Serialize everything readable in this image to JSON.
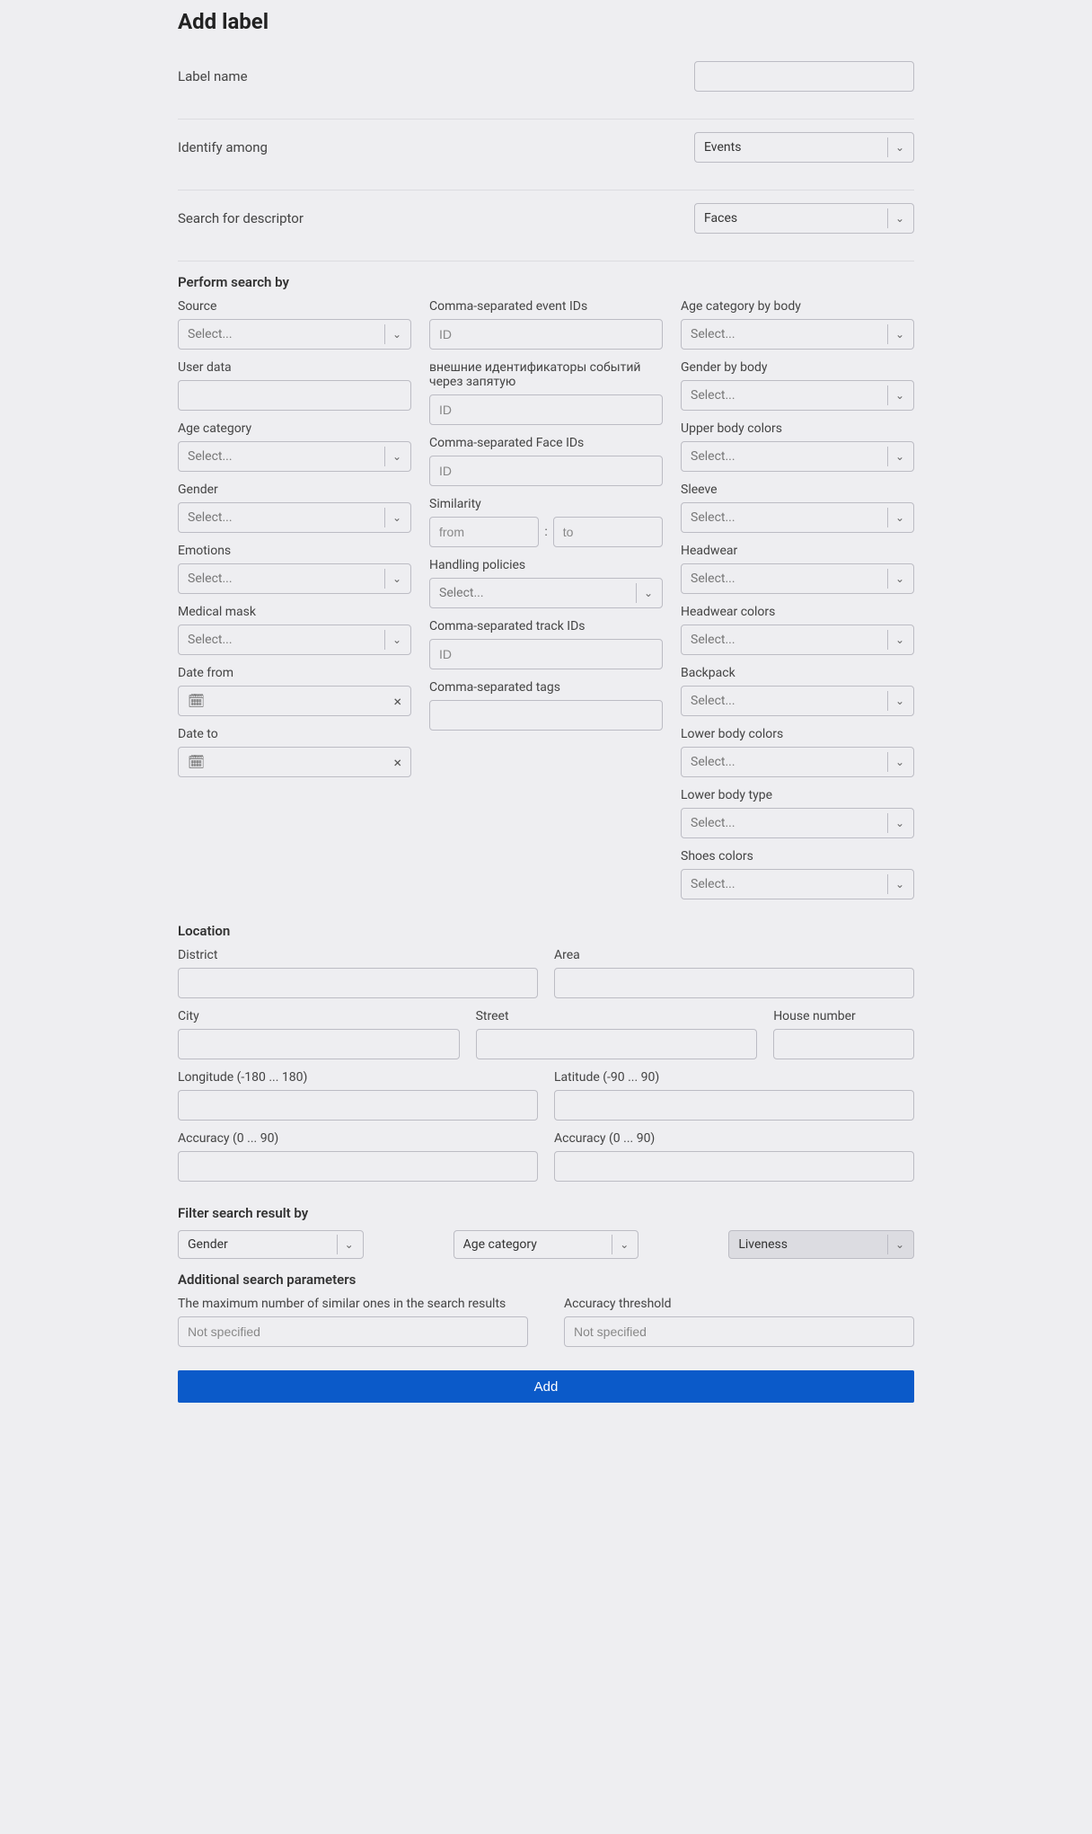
{
  "page_title": "Add label",
  "top": {
    "label_name": {
      "label": "Label name",
      "value": ""
    },
    "identify_among": {
      "label": "Identify among",
      "value": "Events"
    },
    "search_descriptor": {
      "label": "Search for descriptor",
      "value": "Faces"
    }
  },
  "perform_title": "Perform search by",
  "select_placeholder": "Select...",
  "col1": {
    "source": "Source",
    "user_data": "User data",
    "age_category": "Age category",
    "gender": "Gender",
    "emotions": "Emotions",
    "medical_mask": "Medical mask",
    "date_from": "Date from",
    "date_to": "Date to"
  },
  "col2": {
    "event_ids": "Comma-separated event IDs",
    "external_ids": "внешние идентификаторы событий через запятую",
    "face_ids": "Comma-separated Face IDs",
    "similarity": "Similarity",
    "sim_from_ph": "from",
    "sim_to_ph": "to",
    "handling_policies": "Handling policies",
    "track_ids": "Comma-separated track IDs",
    "tags": "Comma-separated tags",
    "id_ph": "ID"
  },
  "col3": {
    "age_body": "Age category by body",
    "gender_body": "Gender by body",
    "upper_colors": "Upper body colors",
    "sleeve": "Sleeve",
    "headwear": "Headwear",
    "headwear_colors": "Headwear colors",
    "backpack": "Backpack",
    "lower_colors": "Lower body colors",
    "lower_type": "Lower body type",
    "shoes_colors": "Shoes colors"
  },
  "location": {
    "title": "Location",
    "district": "District",
    "area": "Area",
    "city": "City",
    "street": "Street",
    "house": "House number",
    "lon": "Longitude (-180 ... 180)",
    "lat": "Latitude (-90 ... 90)",
    "acc1": "Accuracy (0 ... 90)",
    "acc2": "Accuracy (0 ... 90)"
  },
  "filter": {
    "title": "Filter search result by",
    "gender": "Gender",
    "age": "Age category",
    "liveness": "Liveness"
  },
  "additional": {
    "title": "Additional search parameters",
    "max_similar": "The maximum number of similar ones in the search results",
    "accuracy_threshold": "Accuracy threshold",
    "not_specified": "Not specified"
  },
  "add_button": "Add"
}
